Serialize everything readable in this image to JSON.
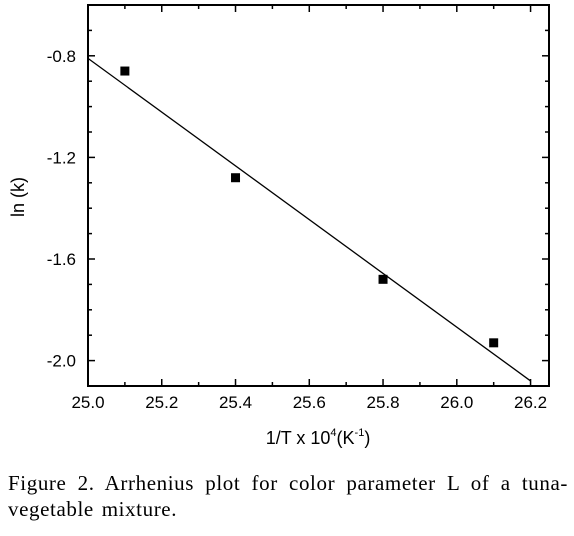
{
  "chart_data": {
    "type": "scatter",
    "xlabel": "1/T x 10",
    "xlabel_superscript": "4",
    "xlabel_unit": "(K",
    "xlabel_unit_superscript": "-1",
    "xlabel_unit_close": ")",
    "ylabel": "ln (k)",
    "xlim": [
      25.0,
      26.25
    ],
    "ylim": [
      -2.1,
      -0.6
    ],
    "x_ticks": [
      25.0,
      25.2,
      25.4,
      25.6,
      25.8,
      26.0,
      26.2
    ],
    "x_tick_labels": [
      "25.0",
      "25.2",
      "25.4",
      "25.6",
      "25.8",
      "26.0",
      "26.2"
    ],
    "y_ticks": [
      -0.8,
      -1.2,
      -1.6,
      -2.0
    ],
    "y_tick_labels": [
      "-0.8",
      "-1.2",
      "-1.6",
      "-2.0"
    ],
    "grid": false,
    "points": [
      {
        "x": 25.1,
        "y": -0.86
      },
      {
        "x": 25.4,
        "y": -1.28
      },
      {
        "x": 25.8,
        "y": -1.68
      },
      {
        "x": 26.1,
        "y": -1.93
      }
    ],
    "fit_line": {
      "x": [
        25.0,
        26.2
      ],
      "y": [
        -0.81,
        -2.08
      ]
    }
  },
  "caption": "Figure 2. Arrhenius plot for color parameter L of a tuna-vegetable mixture."
}
